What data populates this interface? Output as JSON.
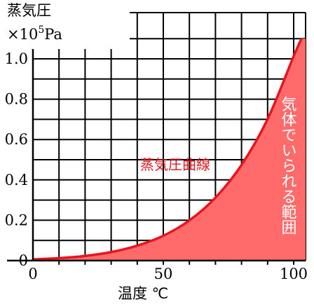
{
  "chart_data": {
    "type": "area",
    "ylabel": "蒸気圧",
    "yunit_prefix": "×10",
    "yunit_exponent": "5",
    "yunit_suffix": "Pa",
    "xlabel": "温度 ℃",
    "xlim": [
      0,
      105
    ],
    "ylim": [
      0,
      1.1
    ],
    "x_tick_labels": [
      "0",
      "50",
      "100"
    ],
    "x_tick_values": [
      0,
      50,
      100
    ],
    "y_tick_labels": [
      "0",
      "0.2",
      "0.4",
      "0.6",
      "0.8",
      "1.0"
    ],
    "y_tick_values": [
      0,
      0.2,
      0.4,
      0.6,
      0.8,
      1.0
    ],
    "grid": true,
    "curve_label": "蒸気圧曲線",
    "region_label": "気体でいられる範囲",
    "colors": {
      "curve": "#e8141e",
      "fill": "#ff6b6b",
      "grid": "#000000"
    },
    "series": [
      {
        "name": "蒸気圧曲線",
        "x": [
          0,
          10,
          20,
          30,
          40,
          50,
          60,
          70,
          80,
          90,
          100,
          103
        ],
        "values": [
          0.006,
          0.012,
          0.023,
          0.042,
          0.074,
          0.123,
          0.199,
          0.312,
          0.474,
          0.701,
          1.013,
          1.1
        ]
      }
    ]
  }
}
